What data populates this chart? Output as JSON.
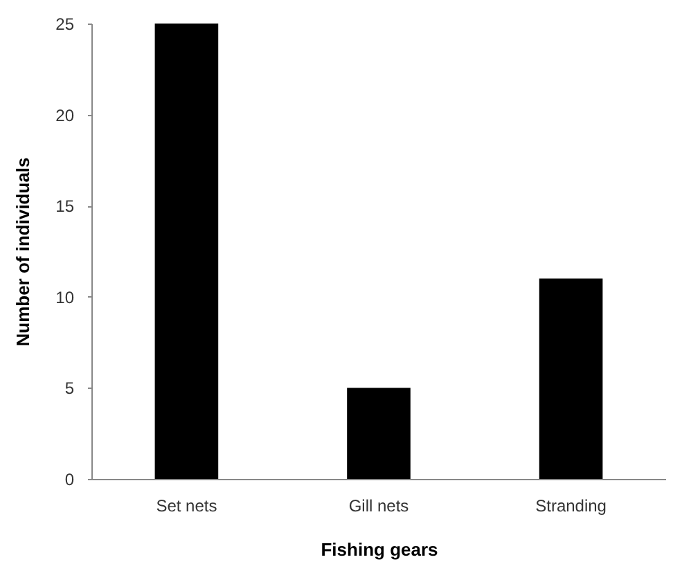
{
  "chart_data": {
    "type": "bar",
    "xlabel": "Fishing gears",
    "ylabel": "Number of individuals",
    "categories": [
      "Set nets",
      "Gill nets",
      "Stranding"
    ],
    "values": [
      25,
      5,
      11
    ],
    "color": "#000000",
    "ylim": [
      0,
      25
    ],
    "yticks": [
      0,
      5,
      10,
      15,
      20,
      25
    ],
    "grid": false
  }
}
